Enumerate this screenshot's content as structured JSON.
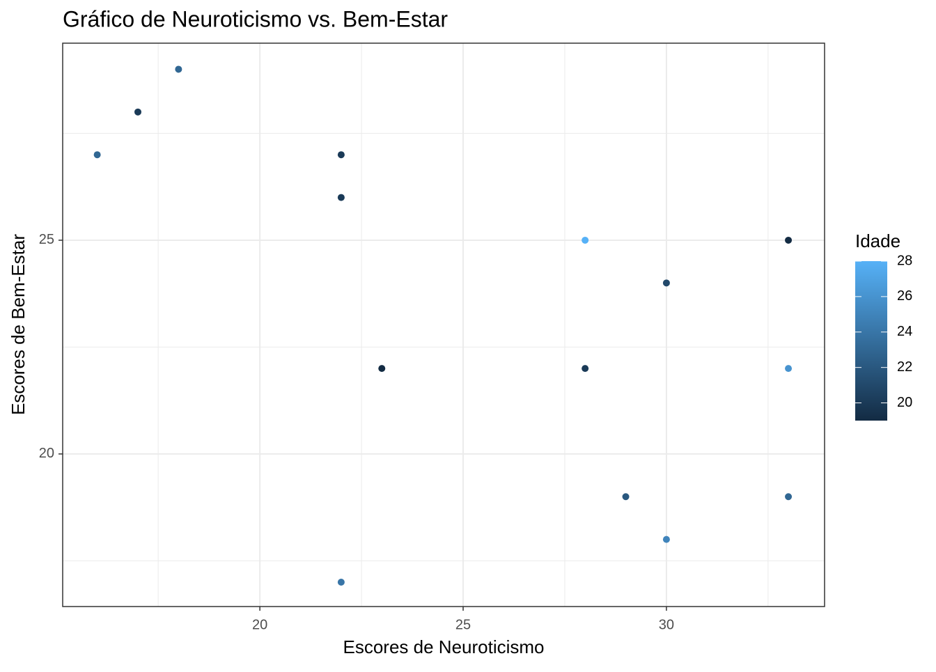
{
  "chart_data": {
    "type": "scatter",
    "title": "Gráfico de Neuroticismo vs. Bem-Estar",
    "x_label": "Escores de Neuroticismo",
    "y_label": "Escores de Bem-Estar",
    "legend_title": "Idade",
    "x": [
      16,
      17,
      18,
      22,
      22,
      22,
      23,
      28,
      28,
      29,
      30,
      30,
      33,
      33,
      33
    ],
    "y": [
      27,
      28,
      29,
      27,
      26,
      17,
      22,
      25,
      22,
      19,
      24,
      18,
      25,
      22,
      19
    ],
    "color_values": [
      23,
      20,
      23,
      20,
      20,
      24,
      19,
      28,
      20,
      22,
      21,
      25,
      19,
      26,
      23
    ],
    "color_low": "#132B43",
    "color_high": "#56B1F7",
    "colorlim": [
      19,
      28
    ],
    "colorticks": [
      20,
      22,
      24,
      26,
      28
    ],
    "xlim": [
      15.15,
      33.89
    ],
    "xticks": [
      20,
      25,
      30
    ],
    "x_minor_ticks": [
      17.5,
      22.5,
      27.5,
      32.5
    ],
    "ylim": [
      16.43,
      29.61
    ],
    "yticks": [
      20,
      25
    ],
    "y_minor_ticks": [
      17.5,
      22.5,
      27.5
    ],
    "grid": true
  }
}
